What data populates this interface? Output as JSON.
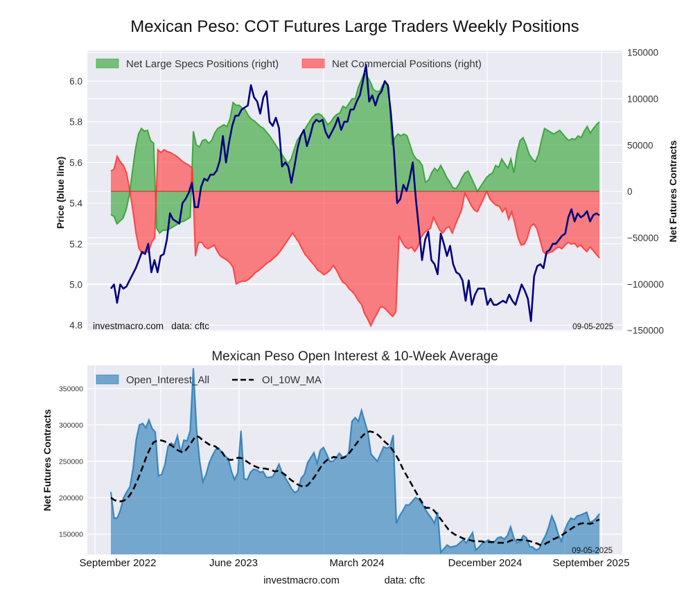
{
  "figure": {
    "main_title": "Mexican Peso: COT Futures Large Traders Weekly Positions",
    "footer_site": "investmacro.com",
    "footer_source": "data: cftc"
  },
  "chart_data": [
    {
      "type": "area",
      "title": "",
      "ylabel_left": "Price (blue line)",
      "ylabel_right": "Net Futures Contracts",
      "ylim_left": [
        4.77,
        6.15
      ],
      "ylim_right": [
        -151000,
        152000
      ],
      "yticks_left": [
        "4.8",
        "5.0",
        "5.2",
        "5.4",
        "5.6",
        "5.8",
        "6.0"
      ],
      "yticks_right": [
        "-150000",
        "-100000",
        "-50000",
        "0",
        "50000",
        "100000",
        "150000"
      ],
      "grid": true,
      "legend_position": "top-left",
      "legend": [
        {
          "label": "Net Large Specs Positions (right)",
          "color": "#2ca02c"
        },
        {
          "label": "Net Commercial Positions (right)",
          "color": "#ff3333"
        }
      ],
      "watermark_left": "investmacro.com   data: cftc",
      "date_label": "09-05-2025",
      "x_start": "2022-09-06",
      "x_end": "2025-09-02",
      "series": [
        {
          "name": "Net Large Specs Positions",
          "axis": "right",
          "color": "#2ca02c",
          "values": [
            -25000,
            -27000,
            -35000,
            -32000,
            -29000,
            -20000,
            -5000,
            20000,
            45000,
            62000,
            68000,
            65000,
            66000,
            55000,
            52000,
            -40000,
            -45000,
            -42000,
            -42000,
            -41000,
            -39000,
            -37000,
            -35000,
            -33000,
            -32000,
            -30000,
            -28000,
            65000,
            50000,
            48000,
            55000,
            56000,
            52000,
            55000,
            63000,
            68000,
            70000,
            72000,
            70000,
            78000,
            96000,
            93000,
            93000,
            90000,
            88000,
            82000,
            78000,
            76000,
            73000,
            70000,
            68000,
            64000,
            60000,
            55000,
            50000,
            45000,
            40000,
            35000,
            30000,
            35000,
            45000,
            55000,
            60000,
            64000,
            70000,
            75000,
            80000,
            83000,
            84000,
            82000,
            78000,
            72000,
            75000,
            80000,
            83000,
            85000,
            92000,
            90000,
            95000,
            100000,
            100000,
            112000,
            120000,
            128000,
            124000,
            118000,
            110000,
            108000,
            108000,
            115000,
            118000,
            112000,
            50000,
            58000,
            62000,
            60000,
            62000,
            60000,
            50000,
            40000,
            35000,
            33000,
            28000,
            10000,
            12000,
            20000,
            25000,
            22000,
            28000,
            22000,
            15000,
            10000,
            4000,
            3000,
            8000,
            15000,
            20000,
            22000,
            15000,
            8000,
            0,
            5000,
            10000,
            15000,
            18000,
            20000,
            28000,
            26000,
            35000,
            30000,
            25000,
            35000,
            20000,
            42000,
            55000,
            58000,
            50000,
            40000,
            35000,
            32000,
            40000,
            55000,
            68000,
            66000,
            64000,
            62000,
            64000,
            66000,
            62000,
            58000,
            55000,
            57000,
            56000,
            60000,
            58000,
            65000,
            70000,
            63000,
            68000,
            72000,
            75000
          ]
        },
        {
          "name": "Net Commercial Positions",
          "axis": "right",
          "color": "#ff3333",
          "values": [
            22000,
            24000,
            38000,
            32000,
            28000,
            20000,
            2000,
            -20000,
            -45000,
            -62000,
            -67000,
            -64000,
            -66000,
            -55000,
            -50000,
            45000,
            42000,
            45000,
            43000,
            42000,
            40000,
            38000,
            35000,
            32000,
            30000,
            28000,
            25000,
            -70000,
            -55000,
            -55000,
            -60000,
            -62000,
            -60000,
            -58000,
            -65000,
            -70000,
            -72000,
            -74000,
            -77000,
            -82000,
            -100000,
            -98000,
            -97000,
            -97000,
            -95000,
            -92000,
            -88000,
            -86000,
            -83000,
            -80000,
            -77000,
            -75000,
            -72000,
            -69000,
            -65000,
            -60000,
            -55000,
            -50000,
            -45000,
            -50000,
            -55000,
            -62000,
            -68000,
            -72000,
            -76000,
            -80000,
            -85000,
            -87000,
            -90000,
            -88000,
            -85000,
            -80000,
            -85000,
            -92000,
            -98000,
            -100000,
            -105000,
            -108000,
            -112000,
            -118000,
            -122000,
            -132000,
            -138000,
            -145000,
            -138000,
            -132000,
            -125000,
            -125000,
            -128000,
            -132000,
            -135000,
            -130000,
            -48000,
            -55000,
            -60000,
            -62000,
            -60000,
            -65000,
            -60000,
            -50000,
            -45000,
            -42000,
            -40000,
            -28000,
            -35000,
            -42000,
            -45000,
            -40000,
            -38000,
            -45000,
            -36000,
            -28000,
            -20000,
            -2000,
            -8000,
            -15000,
            -20000,
            -22000,
            -15000,
            -8000,
            0,
            -8000,
            -12000,
            -15000,
            -16000,
            -22000,
            -18000,
            -30000,
            -22000,
            -35000,
            -50000,
            -58000,
            -57000,
            -50000,
            -38000,
            -35000,
            -40000,
            -52000,
            -65000,
            -68000,
            -66000,
            -65000,
            -62000,
            -60000,
            -62000,
            -58000,
            -55000,
            -57000,
            -56000,
            -60000,
            -58000,
            -62000,
            -65000,
            -60000,
            -64000,
            -68000,
            -72000
          ]
        },
        {
          "name": "Price",
          "axis": "left",
          "color": "#00007f",
          "values": [
            4.98,
            5.0,
            4.91,
            5.0,
            4.98,
            4.99,
            5.02,
            5.05,
            5.08,
            5.12,
            5.16,
            5.15,
            5.2,
            5.06,
            5.12,
            5.06,
            5.14,
            5.15,
            5.22,
            5.35,
            5.32,
            5.31,
            5.3,
            5.4,
            5.42,
            5.45,
            5.5,
            5.38,
            5.38,
            5.48,
            5.52,
            5.51,
            5.54,
            5.54,
            5.56,
            5.61,
            5.73,
            5.6,
            5.7,
            5.78,
            5.83,
            5.83,
            5.86,
            5.87,
            5.88,
            5.98,
            5.92,
            5.9,
            5.84,
            5.92,
            5.95,
            5.8,
            5.78,
            5.82,
            5.77,
            5.58,
            5.6,
            5.58,
            5.5,
            5.58,
            5.67,
            5.73,
            5.76,
            5.68,
            5.73,
            5.79,
            5.81,
            5.8,
            5.81,
            5.75,
            5.72,
            5.75,
            5.78,
            5.82,
            5.76,
            5.8,
            5.8,
            5.86,
            5.86,
            5.9,
            5.93,
            6.0,
            6.08,
            5.9,
            5.93,
            5.88,
            5.93,
            5.95,
            6.0,
            5.98,
            5.84,
            5.65,
            5.4,
            5.42,
            5.49,
            5.46,
            5.52,
            5.6,
            5.42,
            5.27,
            5.12,
            5.22,
            5.26,
            5.12,
            5.1,
            5.05,
            5.25,
            5.2,
            5.14,
            5.19,
            5.1,
            5.06,
            5.05,
            5.02,
            4.92,
            5.02,
            4.9,
            4.95,
            4.98,
            4.98,
            4.98,
            4.9,
            4.93,
            4.9,
            4.9,
            4.91,
            4.92,
            4.91,
            4.95,
            4.92,
            4.9,
            4.95,
            5.0,
            4.97,
            4.93,
            4.82,
            5.04,
            5.09,
            5.1,
            5.08,
            5.16,
            5.17,
            5.2,
            5.2,
            5.22,
            5.24,
            5.25,
            5.33,
            5.37,
            5.31,
            5.35,
            5.33,
            5.34,
            5.36,
            5.31,
            5.34,
            5.35,
            5.34
          ]
        }
      ]
    },
    {
      "type": "area",
      "title": "Mexican Peso Open Interest & 10-Week Average",
      "ylabel": "Net Futures Contracts",
      "ylim": [
        122000,
        382000
      ],
      "yticks": [
        "150000",
        "200000",
        "250000",
        "300000",
        "350000"
      ],
      "xtick_labels": [
        "September 2022",
        "June 2023",
        "March 2024",
        "December 2024",
        "September 2025"
      ],
      "grid": true,
      "legend_position": "top-left",
      "legend": [
        {
          "label": "Open_Interest_All",
          "color": "#1f77b4"
        },
        {
          "label": "OI_10W_MA",
          "color": "#000000"
        }
      ],
      "date_label": "09-05-2025",
      "series": [
        {
          "name": "Open_Interest_All",
          "color": "#1f77b4",
          "values": [
            208000,
            172000,
            172000,
            183000,
            200000,
            208000,
            215000,
            240000,
            280000,
            300000,
            302000,
            296000,
            307000,
            295000,
            290000,
            230000,
            232000,
            245000,
            270000,
            275000,
            272000,
            285000,
            262000,
            279000,
            278000,
            292000,
            378000,
            295000,
            250000,
            222000,
            232000,
            248000,
            258000,
            266000,
            268000,
            262000,
            257000,
            254000,
            236000,
            225000,
            234000,
            292000,
            226000,
            225000,
            235000,
            239000,
            238000,
            235000,
            236000,
            228000,
            228000,
            229000,
            237000,
            246000,
            234000,
            227000,
            220000,
            212000,
            207000,
            210000,
            227000,
            232000,
            248000,
            255000,
            262000,
            247000,
            265000,
            269000,
            260000,
            250000,
            250000,
            255000,
            261000,
            256000,
            256000,
            262000,
            305000,
            310000,
            305000,
            320000,
            305000,
            290000,
            260000,
            255000,
            250000,
            260000,
            270000,
            268000,
            270000,
            286000,
            165000,
            175000,
            182000,
            190000,
            190000,
            195000,
            200000,
            198000,
            192000,
            185000,
            178000,
            172000,
            165000,
            180000,
            125000,
            130000,
            135000,
            132000,
            133000,
            134000,
            138000,
            142000,
            138000,
            145000,
            152000,
            128000,
            132000,
            137000,
            139000,
            142000,
            138000,
            140000,
            145000,
            146000,
            143000,
            148000,
            160000,
            145000,
            138000,
            140000,
            148000,
            145000,
            133000,
            132000,
            128000,
            130000,
            140000,
            148000,
            160000,
            175000,
            165000,
            150000,
            140000,
            155000,
            165000,
            172000,
            170000,
            175000,
            176000,
            178000,
            180000,
            166000,
            168000,
            172000,
            178000
          ]
        },
        {
          "name": "OI_10W_MA",
          "color": "#000000",
          "dashed": true,
          "values": [
            200000,
            197000,
            195000,
            195000,
            196000,
            199000,
            205000,
            213000,
            223000,
            234000,
            246000,
            258000,
            268000,
            276000,
            278000,
            279000,
            278000,
            276000,
            273000,
            270000,
            266000,
            264000,
            262000,
            266000,
            272000,
            279000,
            285000,
            283000,
            279000,
            276000,
            273000,
            272000,
            270000,
            266000,
            262000,
            255000,
            252000,
            252000,
            254000,
            255000,
            254000,
            251000,
            248000,
            245000,
            243000,
            241000,
            240000,
            240000,
            239000,
            238000,
            236000,
            237000,
            235000,
            232000,
            228000,
            224000,
            221000,
            218000,
            216000,
            215000,
            217000,
            222000,
            228000,
            235000,
            242000,
            248000,
            252000,
            254000,
            256000,
            255000,
            254000,
            255000,
            258000,
            263000,
            269000,
            275000,
            281000,
            286000,
            290000,
            291000,
            290000,
            288000,
            284000,
            279000,
            275000,
            271000,
            265000,
            258000,
            250000,
            240000,
            232000,
            224000,
            216000,
            208000,
            200000,
            193000,
            186000,
            186000,
            185000,
            180000,
            174000,
            168000,
            162000,
            156000,
            152000,
            149000,
            147000,
            145000,
            143000,
            142000,
            141000,
            140000,
            140000,
            140000,
            139000,
            139000,
            139000,
            139000,
            138000,
            138000,
            138000,
            139000,
            141000,
            142000,
            142000,
            142000,
            142000,
            141000,
            140000,
            138000,
            137000,
            135000,
            135000,
            138000,
            140000,
            143000,
            145000,
            147000,
            150000,
            153000,
            156000,
            159000,
            162000,
            164000,
            165000,
            165000,
            164000,
            165000,
            168000,
            170000
          ]
        }
      ]
    }
  ]
}
